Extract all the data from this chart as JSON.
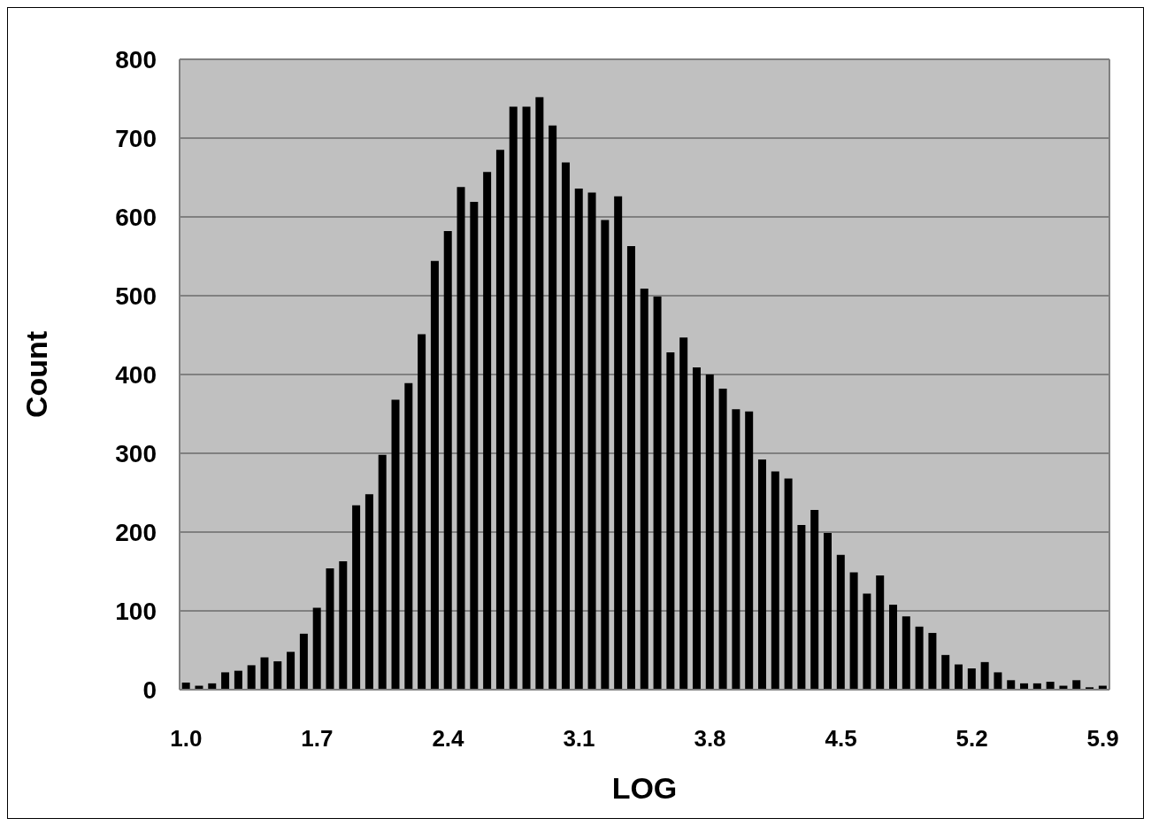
{
  "chart_data": {
    "type": "bar",
    "xlabel": "LOG",
    "ylabel": "Count",
    "categories": [
      "1.0",
      null,
      null,
      null,
      null,
      null,
      null,
      null,
      null,
      null,
      "1.7",
      null,
      null,
      null,
      null,
      null,
      null,
      null,
      null,
      null,
      "2.4",
      null,
      null,
      null,
      null,
      null,
      null,
      null,
      null,
      null,
      "3.1",
      null,
      null,
      null,
      null,
      null,
      null,
      null,
      null,
      null,
      "3.8",
      null,
      null,
      null,
      null,
      null,
      null,
      null,
      null,
      null,
      "4.5",
      null,
      null,
      null,
      null,
      null,
      null,
      null,
      null,
      null,
      "5.2",
      null,
      null,
      null,
      null,
      null,
      null,
      null,
      null,
      null,
      "5.9"
    ],
    "values": [
      9,
      5,
      8,
      22,
      24,
      31,
      41,
      36,
      48,
      71,
      104,
      154,
      163,
      234,
      248,
      298,
      368,
      389,
      451,
      544,
      582,
      638,
      619,
      657,
      685,
      740,
      740,
      752,
      716,
      669,
      636,
      631,
      596,
      626,
      563,
      509,
      499,
      428,
      447,
      409,
      400,
      382,
      356,
      353,
      292,
      277,
      268,
      209,
      228,
      199,
      171,
      149,
      122,
      145,
      108,
      93,
      80,
      72,
      44,
      32,
      27,
      35,
      22,
      12,
      8,
      8,
      10,
      5,
      12,
      3,
      5
    ],
    "color": "#000000",
    "ylim": [
      0,
      800
    ],
    "yticks": [
      0,
      100,
      200,
      300,
      400,
      500,
      600,
      700,
      800
    ],
    "grid": "y"
  }
}
